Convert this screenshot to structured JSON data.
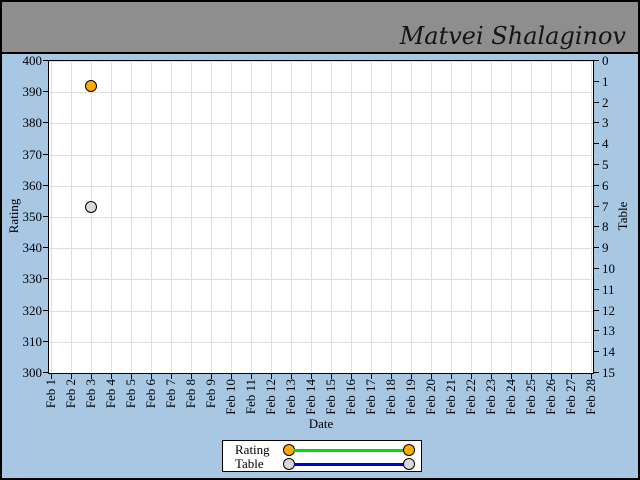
{
  "header": {
    "signature": "Matvei Shalaginov"
  },
  "chart_data": {
    "type": "scatter",
    "x_axis": {
      "label": "Date",
      "categories": [
        "Feb 1",
        "Feb 2",
        "Feb 3",
        "Feb 4",
        "Feb 5",
        "Feb 6",
        "Feb 7",
        "Feb 8",
        "Feb 9",
        "Feb 10",
        "Feb 11",
        "Feb 12",
        "Feb 13",
        "Feb 14",
        "Feb 15",
        "Feb 16",
        "Feb 17",
        "Feb 18",
        "Feb 19",
        "Feb 20",
        "Feb 21",
        "Feb 22",
        "Feb 23",
        "Feb 24",
        "Feb 25",
        "Feb 26",
        "Feb 27",
        "Feb 28"
      ]
    },
    "y_axis_left": {
      "label": "Rating",
      "min": 300,
      "max": 400,
      "step": 10,
      "ticks": [
        400,
        390,
        380,
        370,
        360,
        350,
        340,
        330,
        320,
        310,
        300
      ]
    },
    "y_axis_right": {
      "label": "Table",
      "min": 0,
      "max": 15,
      "step": 1,
      "inverted": true,
      "ticks": [
        0,
        1,
        2,
        3,
        4,
        5,
        6,
        7,
        8,
        9,
        10,
        11,
        12,
        13,
        14,
        15
      ]
    },
    "grid": "on",
    "legend_position": "bottom-center",
    "series": [
      {
        "name": "Rating",
        "axis": "left",
        "marker_color": "#ffaa00",
        "line_color": "#00dd00",
        "points": [
          {
            "date": "Feb 3",
            "value": 392
          }
        ]
      },
      {
        "name": "Table",
        "axis": "right",
        "marker_color": "#d9d9d9",
        "line_color": "#0000cc",
        "points": [
          {
            "date": "Feb 3",
            "value": 7
          }
        ]
      }
    ]
  },
  "colors": {
    "background": "#a8c7e3",
    "header_background": "#8e8e8e",
    "plot_background": "#ffffff",
    "grid": "#dedede",
    "axis": "#000000",
    "text": "#000000",
    "signature": "#141414",
    "legend_background": "#ffffff"
  }
}
